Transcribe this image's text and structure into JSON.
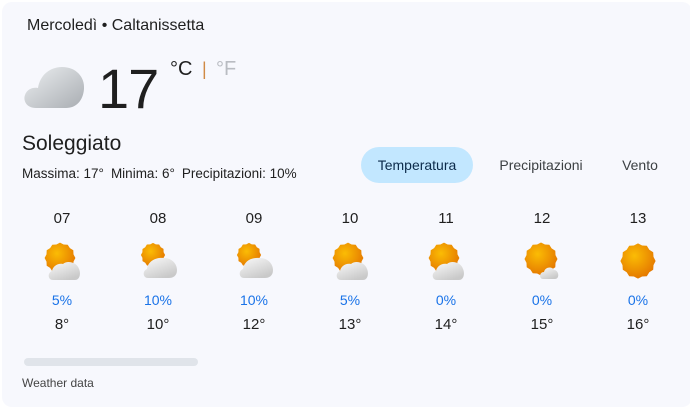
{
  "header": {
    "title": "Mercoledì • Caltanissetta"
  },
  "current": {
    "icon": "cloud-icon",
    "temperature": "17",
    "unit_c": "°C",
    "separator": "|",
    "unit_f": "°F",
    "condition": "Soleggiato",
    "stats": [
      "Massima: 17°",
      "Minima: 6°",
      "Precipitazioni: 10%"
    ]
  },
  "tabs": [
    {
      "label": "Temperatura",
      "active": true
    },
    {
      "label": "Precipitazioni",
      "active": false
    },
    {
      "label": "Vento",
      "active": false
    }
  ],
  "hourly": [
    {
      "hour": "07",
      "icon": "partly-cloudy-icon",
      "precip": "5%",
      "temp": "8°"
    },
    {
      "hour": "08",
      "icon": "mostly-cloudy-icon",
      "precip": "10%",
      "temp": "10°"
    },
    {
      "hour": "09",
      "icon": "mostly-cloudy-icon",
      "precip": "10%",
      "temp": "12°"
    },
    {
      "hour": "10",
      "icon": "partly-cloudy-icon",
      "precip": "5%",
      "temp": "13°"
    },
    {
      "hour": "11",
      "icon": "partly-cloudy-icon",
      "precip": "0%",
      "temp": "14°"
    },
    {
      "hour": "12",
      "icon": "mostly-sunny-icon",
      "precip": "0%",
      "temp": "15°"
    },
    {
      "hour": "13",
      "icon": "sunny-icon",
      "precip": "0%",
      "temp": "16°"
    }
  ],
  "footer": {
    "source": "Weather data"
  },
  "colors": {
    "accent": "#1a73e8",
    "tab_active": "#c2e7ff",
    "sun": "#f29900",
    "background": "#f7f8fd"
  }
}
